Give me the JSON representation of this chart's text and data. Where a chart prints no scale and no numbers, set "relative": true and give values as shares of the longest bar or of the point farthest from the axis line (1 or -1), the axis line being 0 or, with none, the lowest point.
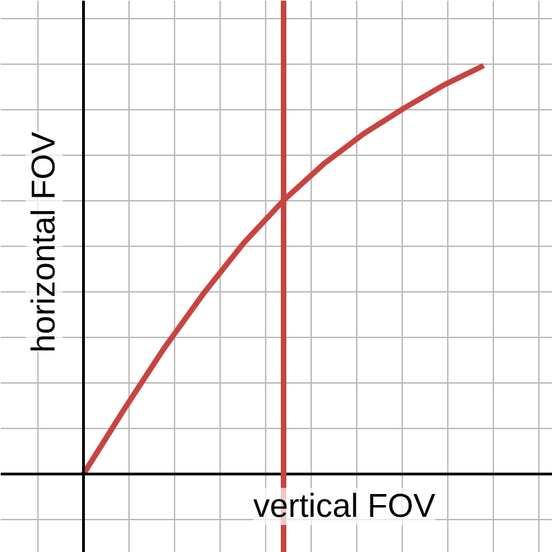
{
  "chart_data": {
    "type": "line",
    "xlabel": "vertical FOV",
    "ylabel": "horizontal FOV",
    "relative": true,
    "categories": [
      null,
      null,
      null,
      null,
      null,
      null,
      null,
      null,
      null,
      null,
      null
    ],
    "series": [
      {
        "color": "#c74440",
        "values": [
          0,
          0.156,
          0.306,
          0.442,
          0.565,
          0.67,
          0.759,
          0.833,
          0.895,
          0.952,
          1.0
        ]
      }
    ],
    "grid": true,
    "marker": "none",
    "line_style": "solid"
  }
}
